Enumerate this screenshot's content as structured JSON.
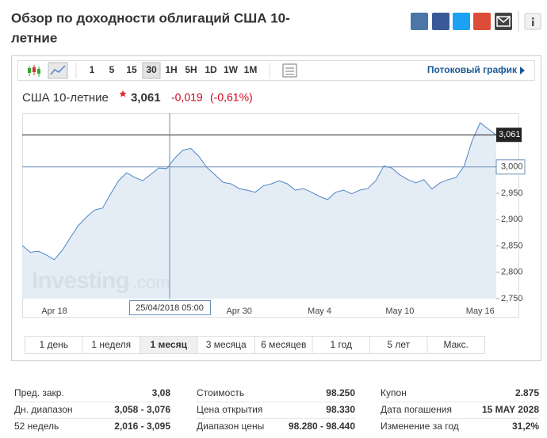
{
  "header": {
    "title": "Обзор по доходности облигаций США 10-",
    "title_line2": "летние"
  },
  "toolbar": {
    "intervals": [
      "1",
      "5",
      "15",
      "30",
      "1H",
      "5H",
      "1D",
      "1W",
      "1M"
    ],
    "streaming": "Потоковый график"
  },
  "quote": {
    "name": "США 10-летние",
    "change": "-0,019",
    "change_pct": "(-0,61%)"
  },
  "chart_data": {
    "type": "area",
    "color": "#4f86c6",
    "fill": "#dfe9f5",
    "categories": [
      null,
      null,
      null,
      null,
      "Apr 18",
      null,
      null,
      null,
      null,
      null,
      null,
      null,
      null,
      null,
      null,
      null,
      null,
      null,
      null,
      null,
      null,
      null,
      null,
      null,
      null,
      null,
      null,
      "Apr 30",
      null,
      null,
      null,
      null,
      null,
      null,
      null,
      null,
      null,
      "May 4",
      null,
      null,
      null,
      null,
      null,
      null,
      null,
      null,
      null,
      "May 10",
      null,
      null,
      null,
      null,
      null,
      null,
      null,
      null,
      null,
      "May 16",
      null,
      null
    ],
    "values": [
      2851,
      2838,
      2840,
      2833,
      2824,
      2842,
      2866,
      2889,
      2905,
      2918,
      2922,
      2949,
      2974,
      2989,
      2980,
      2974,
      2986,
      2998,
      2997,
      3017,
      3032,
      3035,
      3020,
      2999,
      2985,
      2971,
      2968,
      2959,
      2956,
      2952,
      2964,
      2968,
      2974,
      2968,
      2956,
      2959,
      2952,
      2944,
      2938,
      2952,
      2956,
      2949,
      2956,
      2959,
      2974,
      3002,
      2998,
      2985,
      2976,
      2970,
      2976,
      2958,
      2970,
      2976,
      2980,
      3002,
      3050,
      3084,
      3072,
      3061
    ],
    "ylim": [
      2750,
      3102
    ],
    "yticks": [
      {
        "value": 2750,
        "label": "2,750"
      },
      {
        "value": 2800,
        "label": "2,800"
      },
      {
        "value": 2850,
        "label": "2,850"
      },
      {
        "value": 2900,
        "label": "2,900"
      },
      {
        "value": 2950,
        "label": "2,950"
      },
      {
        "value": 3000,
        "label": "3,000"
      }
    ],
    "last": {
      "value": 3061,
      "label": "3,061"
    },
    "crosshair_label": "25/04/2018 05:00",
    "watermark": [
      "Investing",
      ".com"
    ]
  },
  "ranges": [
    "1 день",
    "1 неделя",
    "1 месяц",
    "3 месяца",
    "6 месяцев",
    "1 год",
    "5 лет",
    "Макс."
  ],
  "stats": [
    [
      [
        "Пред. закр.",
        "3,08"
      ],
      [
        "Дн. диапазон",
        "3,058 - 3,076"
      ],
      [
        "52 недель",
        "2,016 - 3,095"
      ]
    ],
    [
      [
        "Стоимость",
        "98.250"
      ],
      [
        "Цена открытия",
        "98.330"
      ],
      [
        "Диапазон цены",
        "98.280 - 98.440"
      ]
    ],
    [
      [
        "Купон",
        "2.875"
      ],
      [
        "Дата погашения",
        "15 MAY 2028"
      ],
      [
        "Изменение за год",
        "31,2%"
      ]
    ]
  ]
}
